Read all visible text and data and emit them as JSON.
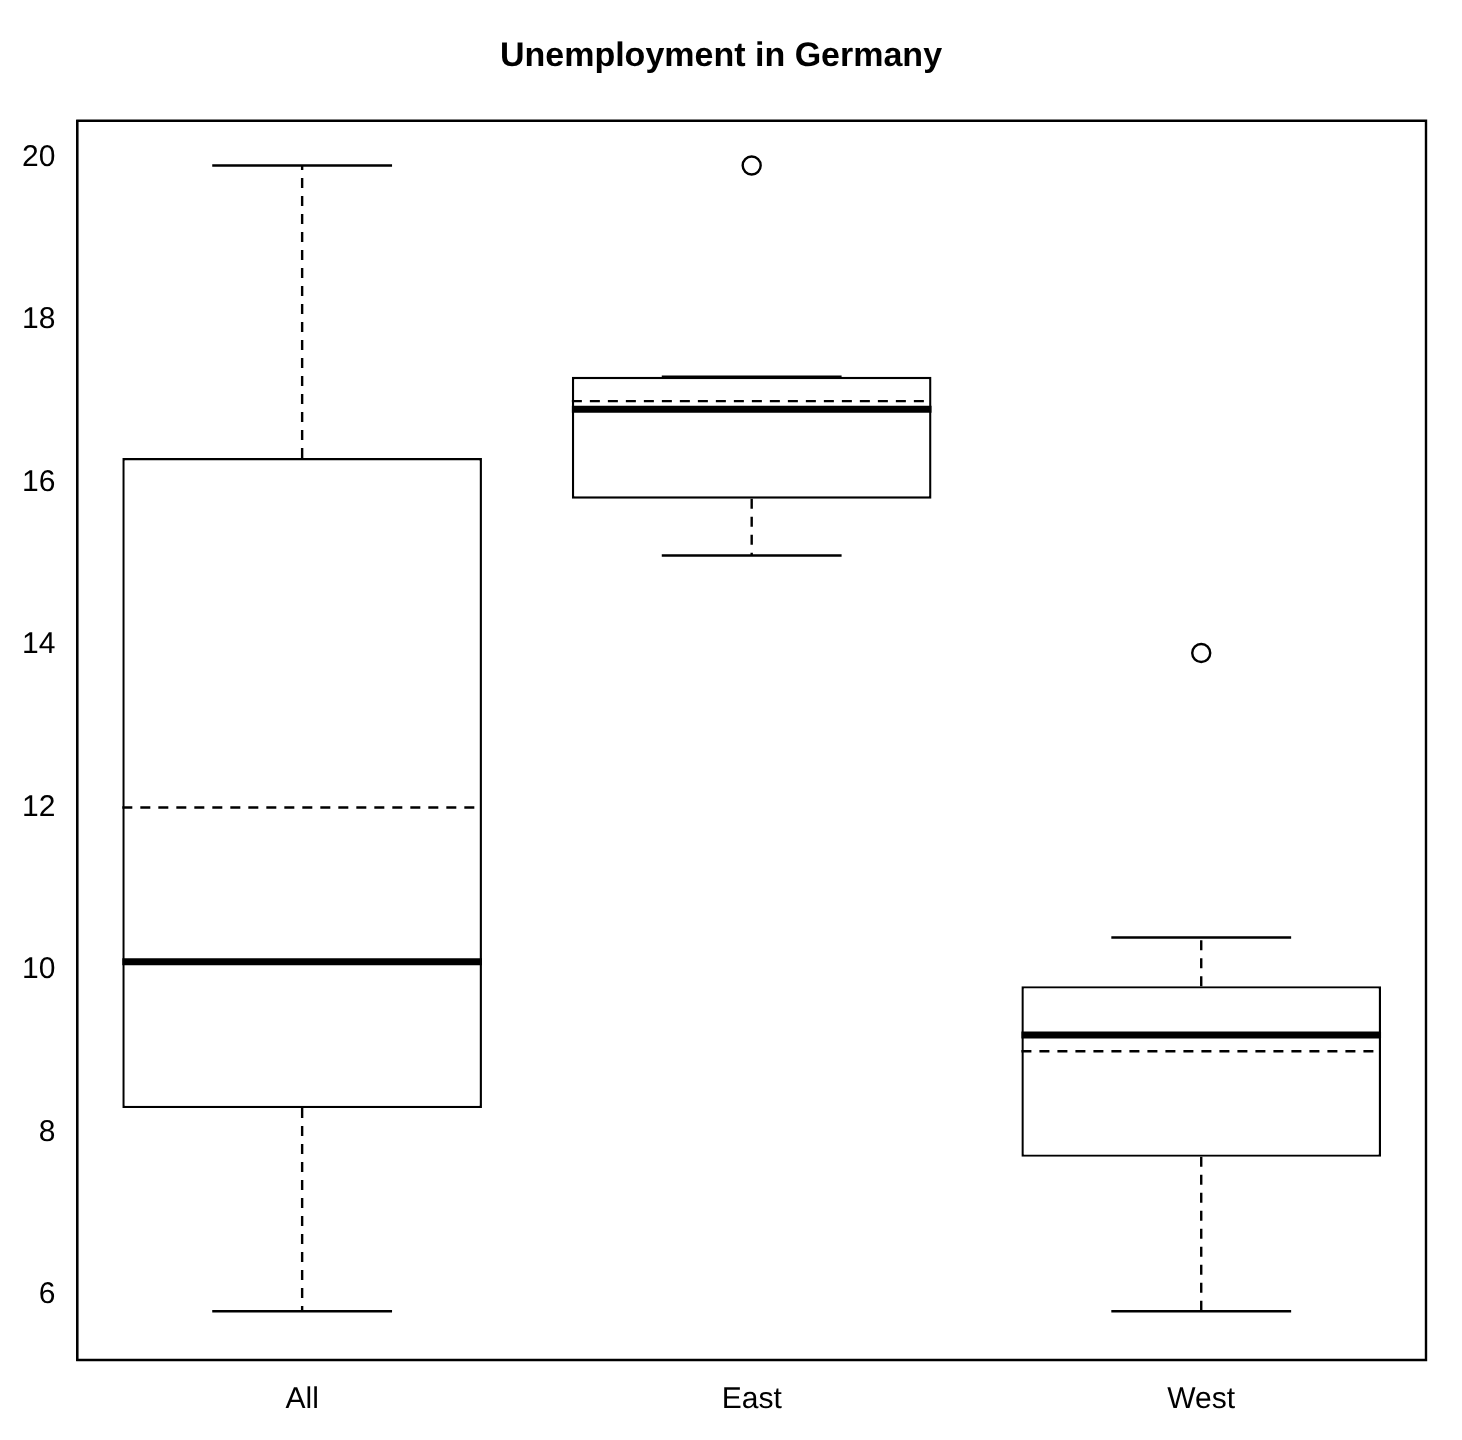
{
  "chart_data": {
    "type": "box",
    "title": "Unemployment in Germany",
    "categories": [
      "All",
      "East",
      "West"
    ],
    "boxes": [
      {
        "low": 5.8,
        "q1": 8.3,
        "median": 10.1,
        "q3": 16.3,
        "high": 19.9,
        "mean": 12.0
      },
      {
        "low": 15.1,
        "q1": 15.8,
        "median": 16.9,
        "q3": 17.3,
        "high": 17.3,
        "mean": 17.0,
        "outliers": [
          19.9
        ]
      },
      {
        "low": 5.8,
        "q1": 7.7,
        "median": 9.2,
        "q3": 9.8,
        "high": 10.4,
        "mean": 9.0,
        "outliers": [
          13.9
        ]
      }
    ],
    "color": "#000000",
    "ylim": [
      5.2,
      20.45
    ],
    "yticks": [
      6,
      8,
      10,
      12,
      14,
      16,
      18,
      20
    ],
    "grid": false,
    "legend": false
  }
}
